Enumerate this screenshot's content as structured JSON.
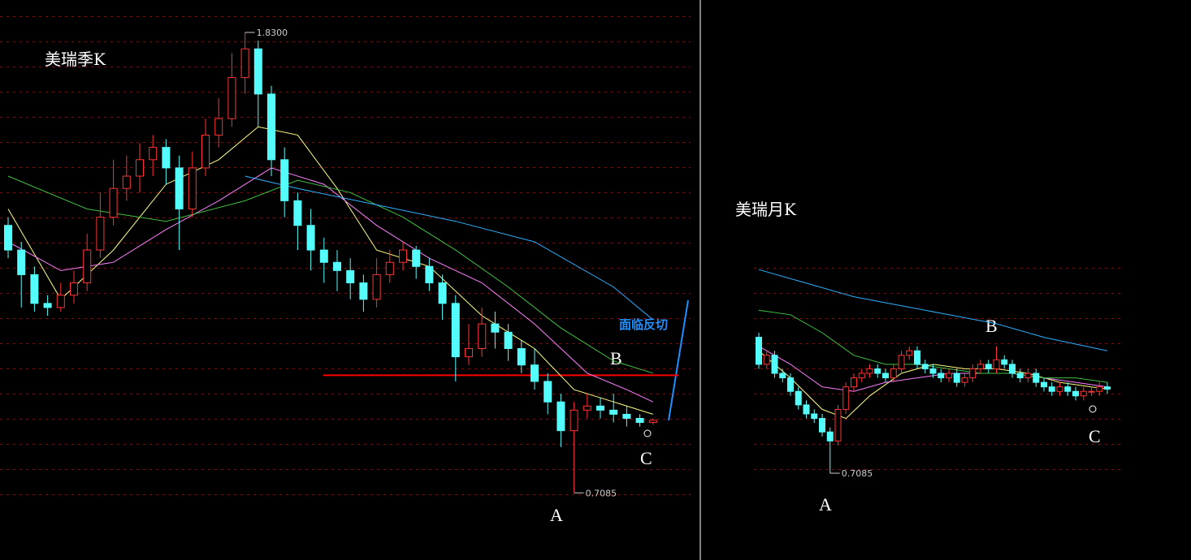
{
  "chart_data": [
    {
      "type": "candlestick",
      "title": "美瑞季K",
      "ylim": [
        0.545,
        1.909
      ],
      "up_color": "#ff3232",
      "down_color": "#54fcfc",
      "ohlc": [
        [
          1.36,
          1.38,
          1.28,
          1.3
        ],
        [
          1.3,
          1.32,
          1.16,
          1.24
        ],
        [
          1.24,
          1.26,
          1.15,
          1.17
        ],
        [
          1.17,
          1.19,
          1.14,
          1.16
        ],
        [
          1.16,
          1.22,
          1.15,
          1.19
        ],
        [
          1.19,
          1.25,
          1.17,
          1.22
        ],
        [
          1.22,
          1.34,
          1.2,
          1.3
        ],
        [
          1.3,
          1.44,
          1.28,
          1.38
        ],
        [
          1.38,
          1.52,
          1.36,
          1.45
        ],
        [
          1.45,
          1.53,
          1.42,
          1.48
        ],
        [
          1.48,
          1.56,
          1.44,
          1.52
        ],
        [
          1.52,
          1.58,
          1.48,
          1.55
        ],
        [
          1.55,
          1.57,
          1.46,
          1.5
        ],
        [
          1.5,
          1.53,
          1.3,
          1.4
        ],
        [
          1.4,
          1.54,
          1.38,
          1.5
        ],
        [
          1.5,
          1.62,
          1.48,
          1.58
        ],
        [
          1.58,
          1.67,
          1.55,
          1.62
        ],
        [
          1.62,
          1.78,
          1.6,
          1.72
        ],
        [
          1.72,
          1.83,
          1.68,
          1.79
        ],
        [
          1.79,
          1.81,
          1.6,
          1.68
        ],
        [
          1.68,
          1.7,
          1.48,
          1.52
        ],
        [
          1.52,
          1.55,
          1.38,
          1.42
        ],
        [
          1.42,
          1.44,
          1.3,
          1.36
        ],
        [
          1.36,
          1.4,
          1.25,
          1.3
        ],
        [
          1.3,
          1.33,
          1.22,
          1.27
        ],
        [
          1.27,
          1.3,
          1.2,
          1.25
        ],
        [
          1.25,
          1.28,
          1.18,
          1.22
        ],
        [
          1.22,
          1.24,
          1.15,
          1.18
        ],
        [
          1.18,
          1.28,
          1.16,
          1.24
        ],
        [
          1.24,
          1.3,
          1.22,
          1.27
        ],
        [
          1.27,
          1.32,
          1.25,
          1.3
        ],
        [
          1.3,
          1.31,
          1.23,
          1.26
        ],
        [
          1.26,
          1.28,
          1.2,
          1.22
        ],
        [
          1.22,
          1.24,
          1.13,
          1.17
        ],
        [
          1.17,
          1.19,
          0.98,
          1.04
        ],
        [
          1.04,
          1.12,
          1.02,
          1.06
        ],
        [
          1.06,
          1.16,
          1.04,
          1.12
        ],
        [
          1.12,
          1.15,
          1.06,
          1.1
        ],
        [
          1.1,
          1.12,
          1.03,
          1.06
        ],
        [
          1.06,
          1.08,
          1.0,
          1.02
        ],
        [
          1.02,
          1.06,
          0.96,
          0.98
        ],
        [
          0.98,
          1.0,
          0.9,
          0.93
        ],
        [
          0.93,
          0.95,
          0.82,
          0.86
        ],
        [
          0.86,
          0.93,
          0.7085,
          0.91
        ],
        [
          0.91,
          0.95,
          0.89,
          0.92
        ],
        [
          0.92,
          0.94,
          0.89,
          0.91
        ],
        [
          0.91,
          0.95,
          0.88,
          0.9
        ],
        [
          0.9,
          0.92,
          0.87,
          0.89
        ],
        [
          0.89,
          0.9,
          0.87,
          0.88
        ],
        [
          0.88,
          0.89,
          0.875,
          0.885
        ]
      ],
      "series": [
        {
          "color": "#ffff80",
          "x": [
            0,
            4,
            8,
            12,
            16,
            19,
            22,
            25,
            28,
            32,
            36,
            40,
            43,
            46,
            49
          ],
          "values": [
            1.4,
            1.18,
            1.3,
            1.46,
            1.52,
            1.6,
            1.58,
            1.45,
            1.3,
            1.26,
            1.14,
            1.06,
            0.96,
            0.93,
            0.9
          ]
        },
        {
          "color": "#ff80ff",
          "x": [
            0,
            4,
            8,
            12,
            16,
            20,
            24,
            28,
            32,
            36,
            40,
            44,
            47,
            49
          ],
          "values": [
            1.32,
            1.25,
            1.27,
            1.35,
            1.42,
            1.5,
            1.46,
            1.36,
            1.28,
            1.22,
            1.12,
            1.0,
            0.96,
            0.93
          ]
        },
        {
          "color": "#40c040",
          "x": [
            0,
            6,
            12,
            18,
            22,
            26,
            30,
            34,
            38,
            42,
            46,
            49
          ],
          "values": [
            1.48,
            1.4,
            1.37,
            1.42,
            1.47,
            1.44,
            1.38,
            1.3,
            1.21,
            1.11,
            1.03,
            1.0
          ]
        },
        {
          "color": "#30b0ff",
          "x": [
            18,
            22,
            28,
            34,
            40,
            46,
            49
          ],
          "values": [
            1.48,
            1.45,
            1.41,
            1.37,
            1.32,
            1.21,
            1.13
          ]
        }
      ],
      "high_label": "1.8300",
      "low_label": "0.7085",
      "reference_line": {
        "value": 0.995,
        "color": "#ff0000"
      },
      "annotations": [
        "A",
        "B",
        "C",
        "面临反切"
      ]
    },
    {
      "type": "candlestick",
      "title": "美瑞月K",
      "ylim": [
        0.678,
        1.227
      ],
      "up_color": "#ff3232",
      "down_color": "#54fcfc",
      "ohlc": [
        [
          1.01,
          1.02,
          0.94,
          0.95
        ],
        [
          0.95,
          0.98,
          0.94,
          0.97
        ],
        [
          0.97,
          0.98,
          0.92,
          0.93
        ],
        [
          0.93,
          0.94,
          0.91,
          0.92
        ],
        [
          0.92,
          0.93,
          0.88,
          0.89
        ],
        [
          0.89,
          0.9,
          0.85,
          0.86
        ],
        [
          0.86,
          0.87,
          0.83,
          0.84
        ],
        [
          0.84,
          0.85,
          0.82,
          0.83
        ],
        [
          0.83,
          0.84,
          0.79,
          0.8
        ],
        [
          0.8,
          0.81,
          0.7085,
          0.78
        ],
        [
          0.78,
          0.86,
          0.77,
          0.85
        ],
        [
          0.85,
          0.91,
          0.84,
          0.9
        ],
        [
          0.9,
          0.93,
          0.89,
          0.92
        ],
        [
          0.92,
          0.94,
          0.91,
          0.93
        ],
        [
          0.93,
          0.95,
          0.92,
          0.94
        ],
        [
          0.94,
          0.95,
          0.92,
          0.93
        ],
        [
          0.93,
          0.94,
          0.91,
          0.92
        ],
        [
          0.92,
          0.95,
          0.91,
          0.94
        ],
        [
          0.94,
          0.98,
          0.93,
          0.97
        ],
        [
          0.97,
          0.99,
          0.96,
          0.98
        ],
        [
          0.98,
          0.99,
          0.94,
          0.95
        ],
        [
          0.95,
          0.96,
          0.93,
          0.94
        ],
        [
          0.94,
          0.95,
          0.92,
          0.93
        ],
        [
          0.93,
          0.94,
          0.91,
          0.92
        ],
        [
          0.92,
          0.94,
          0.91,
          0.93
        ],
        [
          0.93,
          0.94,
          0.9,
          0.91
        ],
        [
          0.91,
          0.93,
          0.9,
          0.92
        ],
        [
          0.92,
          0.95,
          0.91,
          0.94
        ],
        [
          0.94,
          0.96,
          0.93,
          0.95
        ],
        [
          0.95,
          0.96,
          0.93,
          0.94
        ],
        [
          0.94,
          0.99,
          0.93,
          0.96
        ],
        [
          0.96,
          0.97,
          0.94,
          0.95
        ],
        [
          0.95,
          0.96,
          0.92,
          0.93
        ],
        [
          0.93,
          0.94,
          0.91,
          0.92
        ],
        [
          0.92,
          0.94,
          0.91,
          0.93
        ],
        [
          0.93,
          0.94,
          0.9,
          0.91
        ],
        [
          0.91,
          0.92,
          0.89,
          0.9
        ],
        [
          0.9,
          0.91,
          0.88,
          0.89
        ],
        [
          0.89,
          0.91,
          0.88,
          0.9
        ],
        [
          0.9,
          0.91,
          0.88,
          0.89
        ],
        [
          0.89,
          0.9,
          0.87,
          0.88
        ],
        [
          0.88,
          0.9,
          0.87,
          0.89
        ],
        [
          0.89,
          0.9,
          0.88,
          0.89
        ],
        [
          0.89,
          0.91,
          0.88,
          0.9
        ],
        [
          0.9,
          0.91,
          0.885,
          0.895
        ]
      ],
      "series": [
        {
          "color": "#ffff80",
          "x": [
            0,
            4,
            8,
            11,
            14,
            18,
            22,
            26,
            30,
            34,
            38,
            42,
            44
          ],
          "values": [
            0.98,
            0.92,
            0.85,
            0.83,
            0.88,
            0.93,
            0.95,
            0.94,
            0.94,
            0.93,
            0.91,
            0.9,
            0.895
          ]
        },
        {
          "color": "#ff80ff",
          "x": [
            0,
            4,
            8,
            12,
            16,
            20,
            24,
            28,
            32,
            36,
            40,
            44
          ],
          "values": [
            0.99,
            0.95,
            0.9,
            0.89,
            0.91,
            0.92,
            0.93,
            0.93,
            0.93,
            0.92,
            0.91,
            0.9
          ]
        },
        {
          "color": "#40c040",
          "x": [
            0,
            4,
            8,
            12,
            16,
            20,
            24,
            28,
            32,
            36,
            40,
            44
          ],
          "values": [
            1.07,
            1.06,
            1.02,
            0.97,
            0.95,
            0.95,
            0.94,
            0.93,
            0.93,
            0.92,
            0.92,
            0.91
          ]
        },
        {
          "color": "#30b0ff",
          "x": [
            0,
            6,
            12,
            18,
            24,
            30,
            36,
            44
          ],
          "values": [
            1.16,
            1.13,
            1.1,
            1.08,
            1.06,
            1.04,
            1.01,
            0.98
          ]
        }
      ],
      "low_label": "0.7085",
      "annotations": [
        "A",
        "B",
        "C"
      ]
    }
  ]
}
